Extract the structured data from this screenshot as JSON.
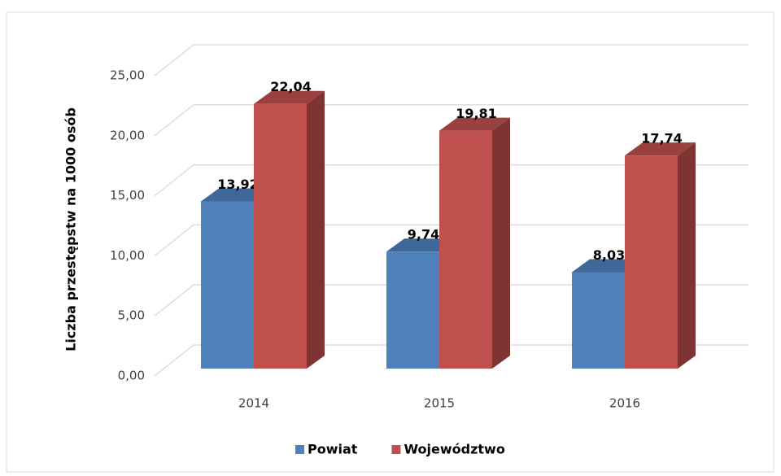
{
  "chart_data": {
    "type": "bar3d",
    "y_label": "Liczba przestępstw na 1000 osób",
    "categories": [
      "2014",
      "2015",
      "2016"
    ],
    "series": [
      {
        "name": "Powiat",
        "color": "#4f81bd",
        "values": [
          13.92,
          9.74,
          8.03
        ],
        "value_labels": [
          "13,92",
          "9,74",
          "8,03"
        ]
      },
      {
        "name": "Województwo",
        "color": "#c0504d",
        "values": [
          22.04,
          19.81,
          17.74
        ],
        "value_labels": [
          "22,04",
          "19,81",
          "17,74"
        ]
      }
    ],
    "ylim": [
      0,
      25
    ],
    "yticks": [
      {
        "value": 0,
        "label": "0,00"
      },
      {
        "value": 5,
        "label": "5,00"
      },
      {
        "value": 10,
        "label": "10,00"
      },
      {
        "value": 15,
        "label": "15,00"
      },
      {
        "value": 20,
        "label": "20,00"
      },
      {
        "value": 25,
        "label": "25,00"
      }
    ],
    "grid": true,
    "legend": "bottom"
  }
}
